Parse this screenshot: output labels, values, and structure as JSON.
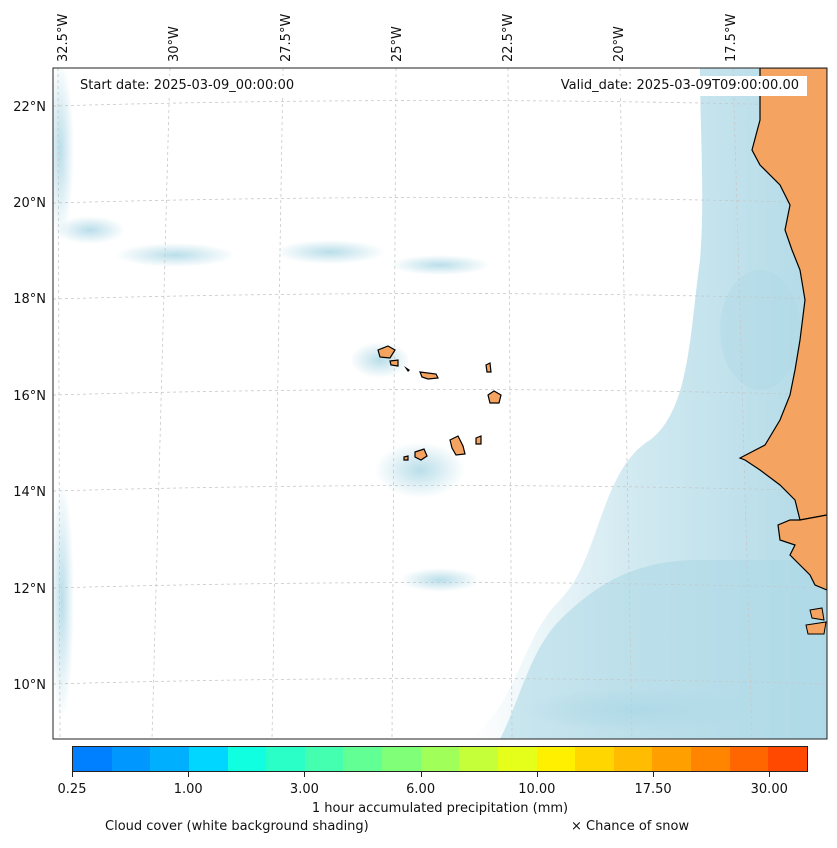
{
  "map": {
    "start_date": "Start date: 2025-03-09_00:00:00",
    "valid_date": "Valid_date: 2025-03-09T09:00:00.00",
    "lon_labels": [
      "32.5°W",
      "30°W",
      "27.5°W",
      "25°W",
      "22.5°W",
      "20°W",
      "17.5°W"
    ],
    "lat_labels": [
      "22°N",
      "20°N",
      "18°N",
      "16°N",
      "14°N",
      "12°N",
      "10°N"
    ],
    "colors": {
      "land": "#f4a460",
      "cloud": "#add8e6",
      "coast": "#000000",
      "grid": "#c8c8c8"
    }
  },
  "legend": {
    "colorbar_label": "1 hour accumulated precipitation (mm)",
    "ticks": [
      "0.25",
      "1.00",
      "3.00",
      "6.00",
      "10.00",
      "17.50",
      "30.00"
    ],
    "colors": [
      "#0080ff",
      "#0098ff",
      "#00b0ff",
      "#00d6ff",
      "#10ffe0",
      "#2affc8",
      "#45ffb0",
      "#62ff95",
      "#80ff78",
      "#a0ff58",
      "#c4ff3a",
      "#e6ff1a",
      "#fff000",
      "#ffd600",
      "#ffbc00",
      "#ffa000",
      "#ff8400",
      "#ff6600",
      "#ff4800"
    ],
    "cloud_note": "Cloud cover (white background shading)",
    "snow_note": "× Chance of snow"
  }
}
